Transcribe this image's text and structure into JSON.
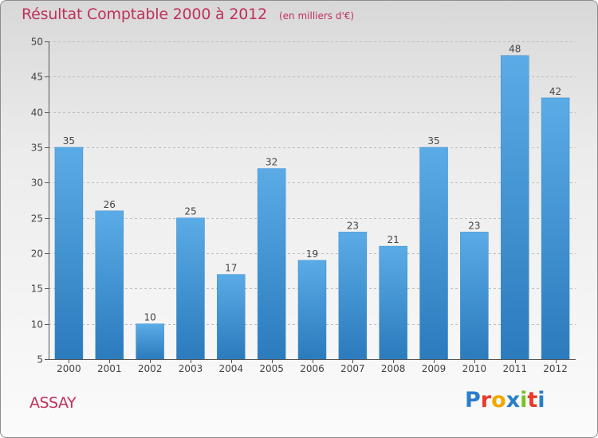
{
  "title": "Résultat Comptable 2000 à 2012",
  "subtitle": "(en milliers d'€)",
  "commune": "ASSAY",
  "logo": {
    "text": "Proxiti",
    "colors": [
      "#2a7fc8",
      "#e8392a",
      "#f2a800",
      "#2a7fc8",
      "#7bbf2a",
      "#e8392a",
      "#2a7fc8"
    ]
  },
  "colors": {
    "bar_top": "#5aabe6",
    "bar_bottom": "#2b7bbd",
    "title": "#c0305a",
    "axis": "#555555"
  },
  "chart_data": {
    "type": "bar",
    "categories": [
      "2000",
      "2001",
      "2002",
      "2003",
      "2004",
      "2005",
      "2006",
      "2007",
      "2008",
      "2009",
      "2010",
      "2011",
      "2012"
    ],
    "values": [
      35,
      26,
      10,
      25,
      17,
      32,
      19,
      23,
      21,
      35,
      23,
      48,
      42
    ],
    "data_labels": [
      "35",
      "26",
      "10",
      "25",
      "17",
      "32",
      "19",
      "23",
      "21",
      "35",
      "23",
      "48",
      "42"
    ],
    "y_ticks": [
      "5",
      "10",
      "15",
      "20",
      "25",
      "30",
      "35",
      "40",
      "45",
      "50"
    ],
    "ylim": [
      5,
      50
    ],
    "grid": true,
    "legend": "none"
  }
}
